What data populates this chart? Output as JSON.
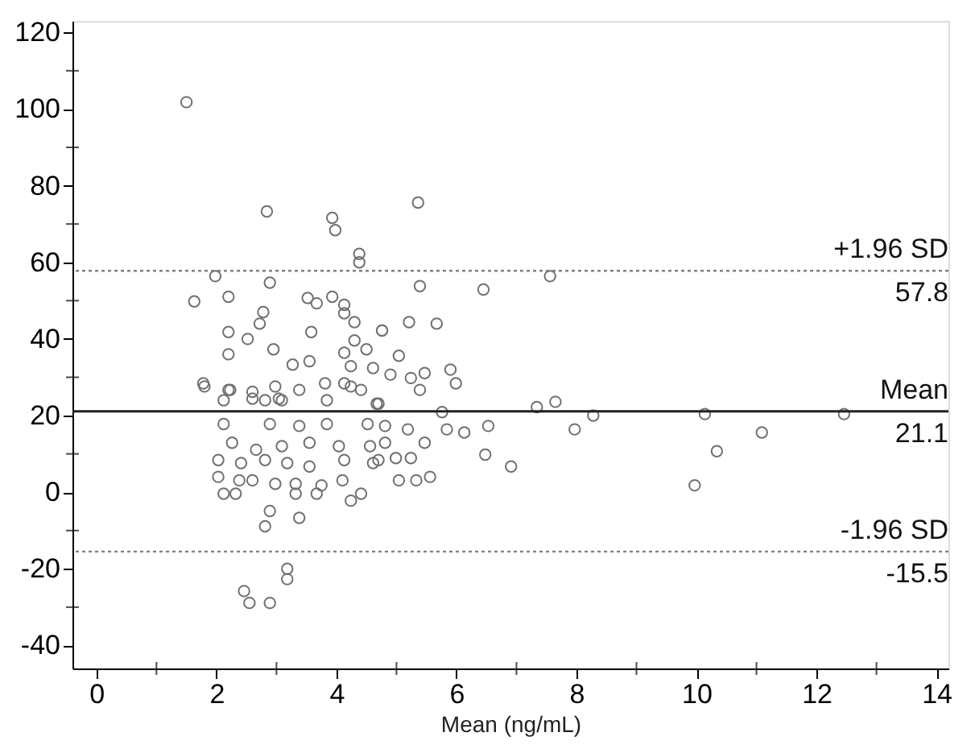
{
  "chart_data": {
    "type": "scatter",
    "xlabel": "Mean (ng/mL)",
    "xlim": [
      -0.4,
      14.2
    ],
    "ylim": [
      -46,
      123
    ],
    "xticks": [
      0,
      {
        "value": 1,
        "label": null
      },
      2,
      {
        "value": 3,
        "label": null
      },
      4,
      {
        "value": 5,
        "label": null
      },
      6,
      {
        "value": 7,
        "label": null
      },
      8,
      {
        "value": 9,
        "label": null
      },
      10,
      {
        "value": 11,
        "label": null
      },
      12,
      {
        "value": 13,
        "label": null
      },
      14
    ],
    "yticks": [
      -40,
      {
        "value": -30,
        "label": null
      },
      -20,
      {
        "value": -10,
        "label": null
      },
      0,
      {
        "value": 10,
        "label": null
      },
      20,
      {
        "value": 30,
        "label": null
      },
      40,
      {
        "value": 50,
        "label": null
      },
      60,
      {
        "value": 70,
        "label": null
      },
      80,
      {
        "value": 90,
        "label": null
      },
      100,
      {
        "value": 110,
        "label": null
      },
      120
    ],
    "grid": false,
    "marker": "circle",
    "series": [
      {
        "color": "#707070",
        "x": [
          1.5,
          2.84,
          3.93,
          3.98,
          4.38,
          4.38,
          1.98,
          2.89,
          1.63,
          2.2,
          3.52,
          3.67,
          3.93,
          4.13,
          2.78,
          2.72,
          4.13,
          4.3,
          4.76,
          2.2,
          2.52,
          3.58,
          2.95,
          2.2,
          4.3,
          4.5,
          3.27,
          3.55,
          4.13,
          4.24,
          4.61,
          1.78,
          2.23,
          2.6,
          2.98,
          3.38,
          3.81,
          4.13,
          4.41,
          2.12,
          2.81,
          3.09,
          3.84,
          4.67,
          1.8,
          2.2,
          2.6,
          3.04,
          4.24,
          2.12,
          2.89,
          3.38,
          3.84,
          4.52,
          2.26,
          2.66,
          3.09,
          3.55,
          4.04,
          4.56,
          2.03,
          2.41,
          2.81,
          3.18,
          3.55,
          4.13,
          4.61,
          2.03,
          2.38,
          2.6,
          2.98,
          3.32,
          3.75,
          4.1,
          2.12,
          2.32,
          3.32,
          3.67,
          4.41,
          2.89,
          2.81,
          3.38,
          4.24,
          3.18,
          3.18,
          2.46,
          2.55,
          2.89,
          5.36,
          5.39,
          6.45,
          7.56,
          4.76,
          5.21,
          5.67,
          5.04,
          4.9,
          5.24,
          5.47,
          5.9,
          5.99,
          5.39,
          4.7,
          5.76,
          7.34,
          7.65,
          8.28,
          10.14,
          12.46,
          7.97,
          11.09,
          6.53,
          6.13,
          5.84,
          4.81,
          5.19,
          5.47,
          4.81,
          4.7,
          4.99,
          5.24,
          6.48,
          6.91,
          10.34,
          9.97,
          5.04,
          5.33,
          5.56
        ],
        "values": [
          101.8,
          73.3,
          71.6,
          68.4,
          62.2,
          60,
          56.4,
          54.7,
          49.8,
          51,
          50.7,
          49.3,
          51,
          48.9,
          47,
          44,
          46.7,
          44.4,
          42.2,
          41.8,
          40,
          41.8,
          37.3,
          36,
          39.6,
          37.3,
          33.3,
          34.2,
          36.4,
          32.9,
          32.4,
          28.4,
          26.7,
          26.2,
          27.6,
          26.7,
          28.4,
          28.4,
          26.7,
          24,
          24,
          24,
          24,
          23.1,
          27.6,
          26.7,
          24.4,
          24.4,
          27.6,
          17.8,
          17.8,
          17.3,
          17.8,
          17.8,
          12.9,
          11.1,
          12,
          12.9,
          12,
          12,
          8.4,
          7.6,
          8.4,
          7.6,
          6.7,
          8.4,
          7.6,
          4,
          3.1,
          3.1,
          2.2,
          2.2,
          1.8,
          3.1,
          -0.4,
          -0.4,
          -0.4,
          -0.4,
          -0.4,
          -4.9,
          -8.9,
          -6.7,
          -2.2,
          -20,
          -22.7,
          -25.8,
          -28.9,
          -28.9,
          75.6,
          53.8,
          52.9,
          56.4,
          42.2,
          44.4,
          44,
          35.6,
          30.7,
          29.8,
          31.1,
          32,
          28.4,
          26.7,
          23.1,
          20.9,
          22.2,
          23.6,
          20,
          20.4,
          20.4,
          16.4,
          15.6,
          17.3,
          15.6,
          16.4,
          17.3,
          16.4,
          12.9,
          12.9,
          8.4,
          8.9,
          8.9,
          9.8,
          6.7,
          10.7,
          1.8,
          3.1,
          3.1,
          4
        ]
      }
    ],
    "ref_lines": [
      {
        "axis": "y",
        "value": 57.8,
        "label": "+1.96 SD",
        "color": "#808080",
        "line_style": "dotted"
      },
      {
        "axis": "y",
        "value": 21.1,
        "label": "Mean",
        "color": "#202020",
        "line_style": "solid"
      },
      {
        "axis": "y",
        "value": -15.5,
        "label": "-1.96 SD",
        "color": "#808080",
        "line_style": "dotted"
      }
    ],
    "annotations": [
      {
        "text": "57.8",
        "y": 57.8
      },
      {
        "text": "21.1",
        "y": 21.1
      },
      {
        "text": "-15.5",
        "y": -15.5
      }
    ]
  }
}
